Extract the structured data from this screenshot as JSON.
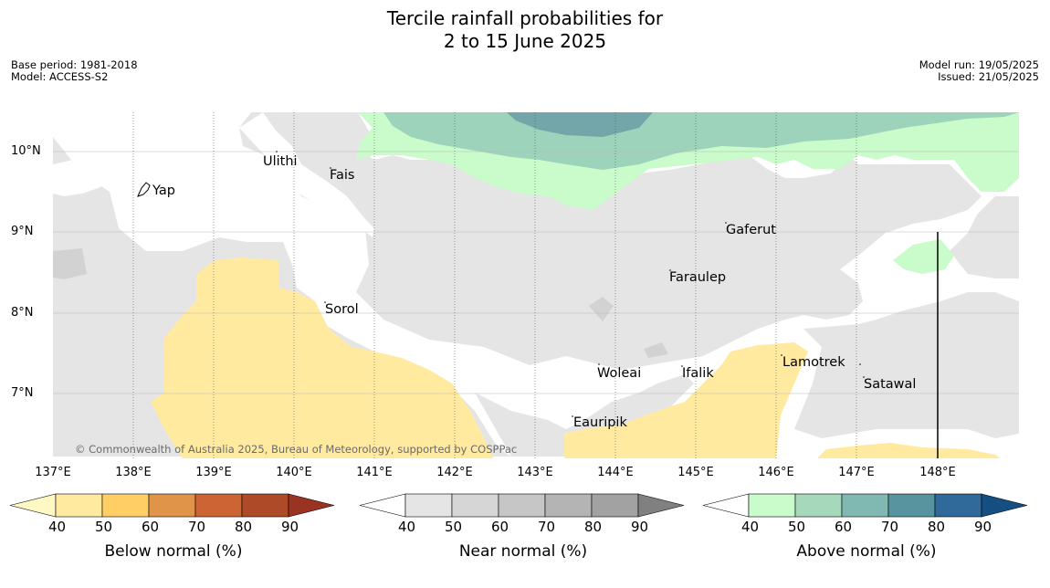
{
  "title_line1": "Tercile rainfall probabilities for",
  "title_line2": "2 to 15 June 2025",
  "meta_left": [
    "Base period: 1981-2018",
    "Model: ACCESS-S2"
  ],
  "meta_right": [
    "Model run: 19/05/2025",
    "Issued: 21/05/2025"
  ],
  "copyright": "© Commonwealth of Australia 2025, Bureau of Meteorology, supported by COSPPac",
  "lat_labels": [
    "10°N",
    "9°N",
    "8°N",
    "7°N"
  ],
  "lon_labels": [
    "137°E",
    "138°E",
    "139°E",
    "140°E",
    "141°E",
    "142°E",
    "143°E",
    "144°E",
    "145°E",
    "146°E",
    "147°E",
    "148°E"
  ],
  "places": [
    "Ulithi",
    "Fais",
    "Yap",
    "Gaferut",
    "Faraulep",
    "Sorol",
    "Lamotrek",
    "Woleai",
    "Ifalik",
    "Satawal",
    "Eauripik"
  ],
  "legends": [
    {
      "title": "Below normal (%)",
      "ticks": [
        "40",
        "50",
        "60",
        "70",
        "80",
        "90"
      ],
      "colors": [
        "#fff7c4",
        "#ffeaa0",
        "#ffcf66",
        "#e0944a",
        "#cd6433",
        "#ad4a27",
        "#9a3322"
      ]
    },
    {
      "title": "Near normal (%)",
      "ticks": [
        "40",
        "50",
        "60",
        "70",
        "80",
        "90"
      ],
      "colors": [
        "#ffffff",
        "#e5e5e5",
        "#d6d6d6",
        "#c6c6c6",
        "#b4b4b4",
        "#a2a2a2",
        "#808080"
      ]
    },
    {
      "title": "Above normal (%)",
      "ticks": [
        "40",
        "50",
        "60",
        "70",
        "80",
        "90"
      ],
      "colors": [
        "#ffffff",
        "#c9fcca",
        "#a6d8bc",
        "#80b8b2",
        "#5894a0",
        "#2f6a9a",
        "#154f82"
      ]
    }
  ],
  "colors": {
    "near_normal_light": "#e5e5e5",
    "near_normal_mid": "#d2d2d2",
    "below_normal_40": "#ffeaa0",
    "above_normal_40": "#c9fcca",
    "above_normal_50": "#9dd2bb",
    "above_normal_60": "#72a6a9"
  }
}
